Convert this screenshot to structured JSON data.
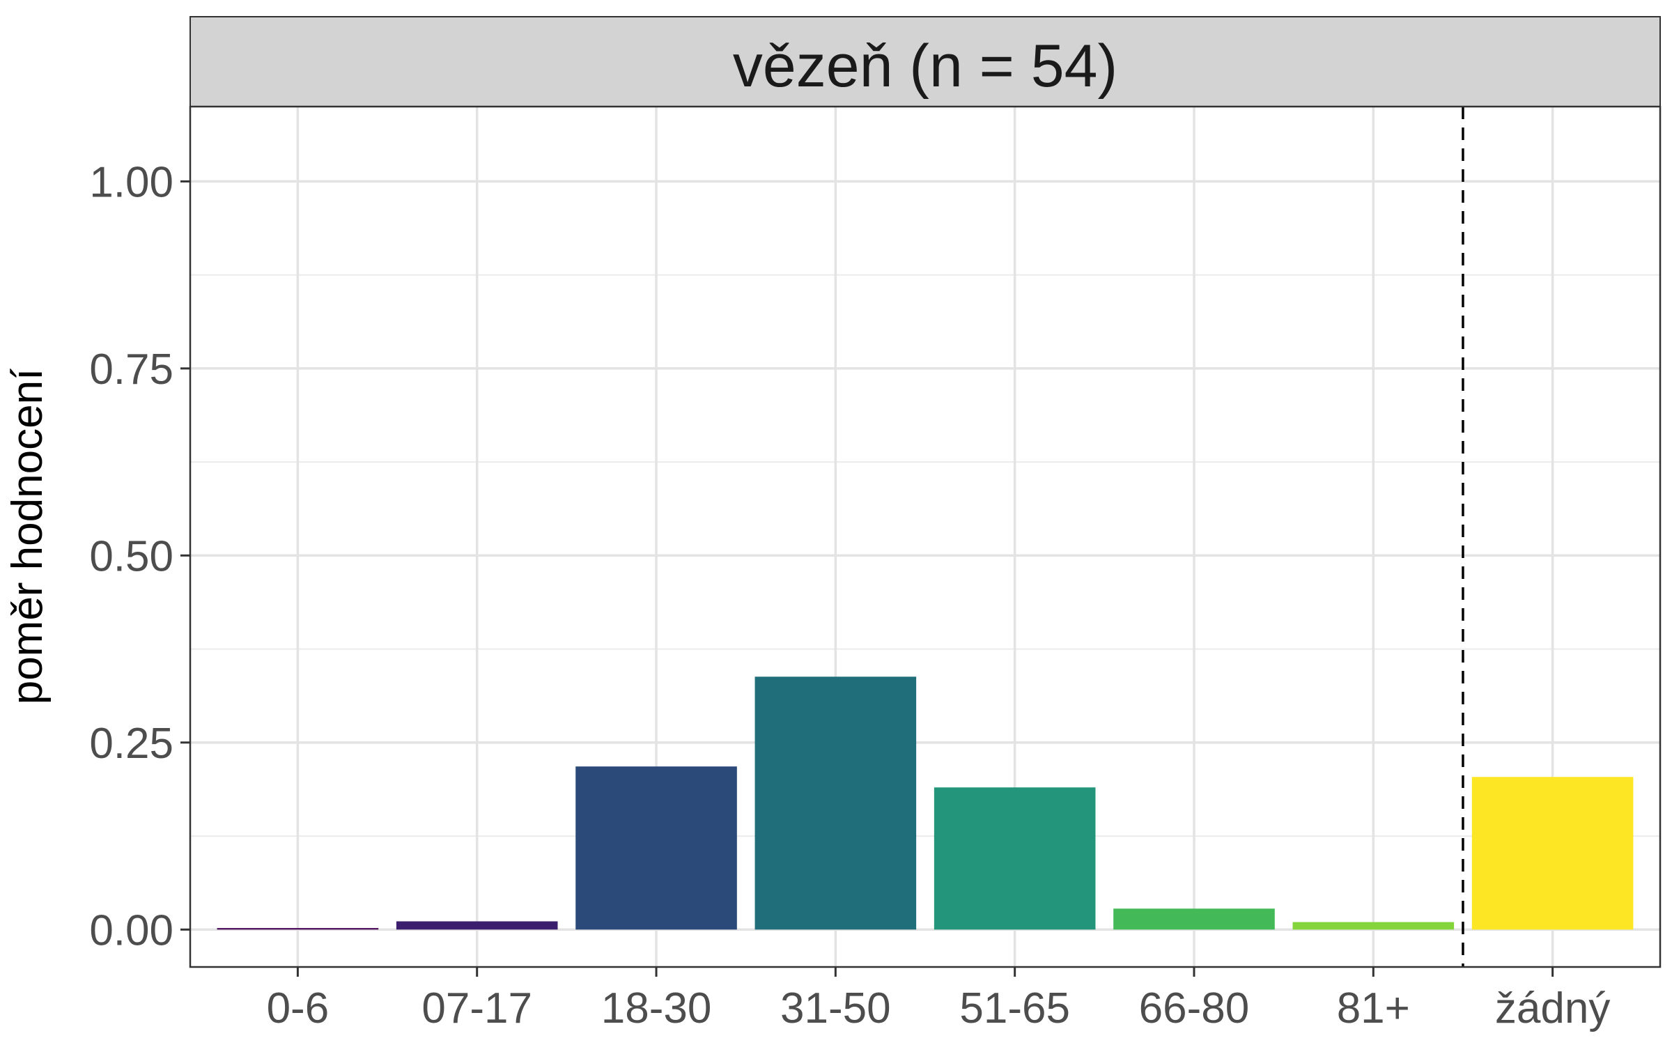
{
  "chart_data": {
    "type": "bar",
    "facet_title": "vězeň (n = 54)",
    "categories": [
      "0-6",
      "07-17",
      "18-30",
      "31-50",
      "51-65",
      "66-80",
      "81+",
      "žádný"
    ],
    "values": [
      0.002,
      0.011,
      0.218,
      0.338,
      0.19,
      0.028,
      0.01,
      0.204
    ],
    "colors": [
      "#440154",
      "#3b1f6e",
      "#2b4a7a",
      "#216e7b",
      "#22957a",
      "#43ba57",
      "#84d43c",
      "#fde725"
    ],
    "ylabel": "poměr hodnocení",
    "xlabel": "",
    "ylim": [
      -0.05,
      1.1
    ],
    "yticks": [
      0,
      0.25,
      0.5,
      0.75,
      1.0
    ],
    "ytick_labels": [
      "0.00",
      "0.25",
      "0.50",
      "0.75",
      "1.00"
    ],
    "grid": true,
    "separator_after_category": "81+"
  }
}
